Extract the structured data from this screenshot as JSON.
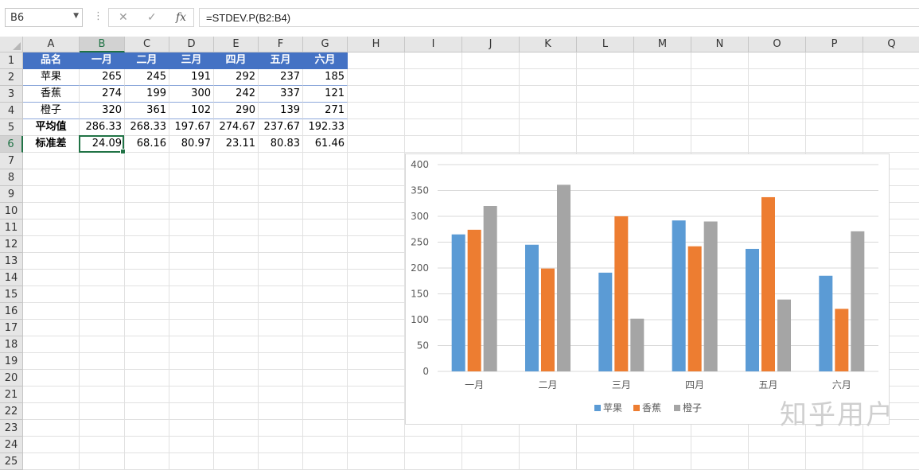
{
  "formula_bar": {
    "name_box": "B6",
    "cancel_icon": "✕",
    "enter_icon": "✓",
    "fx_label": "fx",
    "formula": "=STDEV.P(B2:B4)"
  },
  "columns": [
    "A",
    "B",
    "C",
    "D",
    "E",
    "F",
    "G",
    "H",
    "I",
    "J",
    "K",
    "L",
    "M",
    "N",
    "O",
    "P",
    "Q"
  ],
  "selected_column": "B",
  "rows": [
    "1",
    "2",
    "3",
    "4",
    "5",
    "6",
    "7",
    "8",
    "9",
    "10",
    "11",
    "12",
    "13",
    "14",
    "15",
    "16",
    "17",
    "18",
    "19",
    "20",
    "21",
    "22",
    "23",
    "24",
    "25"
  ],
  "selected_row": "6",
  "table": {
    "header": [
      "品名",
      "一月",
      "二月",
      "三月",
      "四月",
      "五月",
      "六月"
    ],
    "body": [
      [
        "苹果",
        "265",
        "245",
        "191",
        "292",
        "237",
        "185"
      ],
      [
        "香蕉",
        "274",
        "199",
        "300",
        "242",
        "337",
        "121"
      ],
      [
        "橙子",
        "320",
        "361",
        "102",
        "290",
        "139",
        "271"
      ],
      [
        "平均值",
        "286.33",
        "268.33",
        "197.67",
        "274.67",
        "237.67",
        "192.33"
      ],
      [
        "标准差",
        "24.09",
        "68.16",
        "80.97",
        "23.11",
        "80.83",
        "61.46"
      ]
    ]
  },
  "colors": {
    "header_fill": "#4472C4",
    "selection": "#217346",
    "apple": "#5B9BD5",
    "banana": "#ED7D31",
    "orange": "#A5A5A5"
  },
  "chart_data": {
    "type": "bar",
    "title": "",
    "categories": [
      "一月",
      "二月",
      "三月",
      "四月",
      "五月",
      "六月"
    ],
    "series": [
      {
        "name": "苹果",
        "values": [
          265,
          245,
          191,
          292,
          237,
          185
        ],
        "color": "#5B9BD5"
      },
      {
        "name": "香蕉",
        "values": [
          274,
          199,
          300,
          242,
          337,
          121
        ],
        "color": "#ED7D31"
      },
      {
        "name": "橙子",
        "values": [
          320,
          361,
          102,
          290,
          139,
          271
        ],
        "color": "#A5A5A5"
      }
    ],
    "ylim": [
      0,
      400
    ],
    "yticks": [
      0,
      50,
      100,
      150,
      200,
      250,
      300,
      350,
      400
    ],
    "grid": true,
    "legend": "bottom"
  },
  "watermark": "知乎用户"
}
